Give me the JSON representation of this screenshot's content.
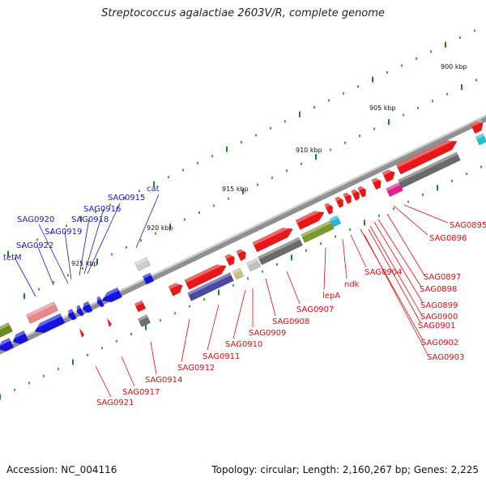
{
  "title": "Streptococcus agalactiae 2603V/R, complete genome",
  "footer": {
    "accession": "Accession: NC_004116",
    "summary": "Topology: circular; Length: 2,160,267 bp; Genes: 2,225"
  },
  "scale_labels": [
    "900 kbp",
    "905 kbp",
    "910 kbp",
    "915 kbp",
    "920 kbp",
    "925 kbp"
  ],
  "blue_labels": [
    "tetM",
    "SAG0922",
    "SAG0920",
    "SAG0919",
    "SAG0918",
    "SAG0916",
    "SAG0915",
    "cat"
  ],
  "red_labels": [
    "SAG0921",
    "SAG0917",
    "SAG0914",
    "SAG0912",
    "SAG0911",
    "SAG0910",
    "SAG0909",
    "SAG0908",
    "SAG0907",
    "lepA",
    "ndk",
    "SAG0904",
    "SAG0903",
    "SAG0902",
    "SAG0901",
    "SAG0900",
    "SAG0899",
    "SAG0898",
    "SAG0897",
    "SAG0896",
    "SAG0895"
  ],
  "colors": {
    "forward_gene": "#e81818",
    "reverse_gene": "#1414e0",
    "backbone": "#8a8a8a",
    "tick": "#1a8a1a",
    "red_label": "#d81010",
    "blue_label": "#1818c8"
  }
}
